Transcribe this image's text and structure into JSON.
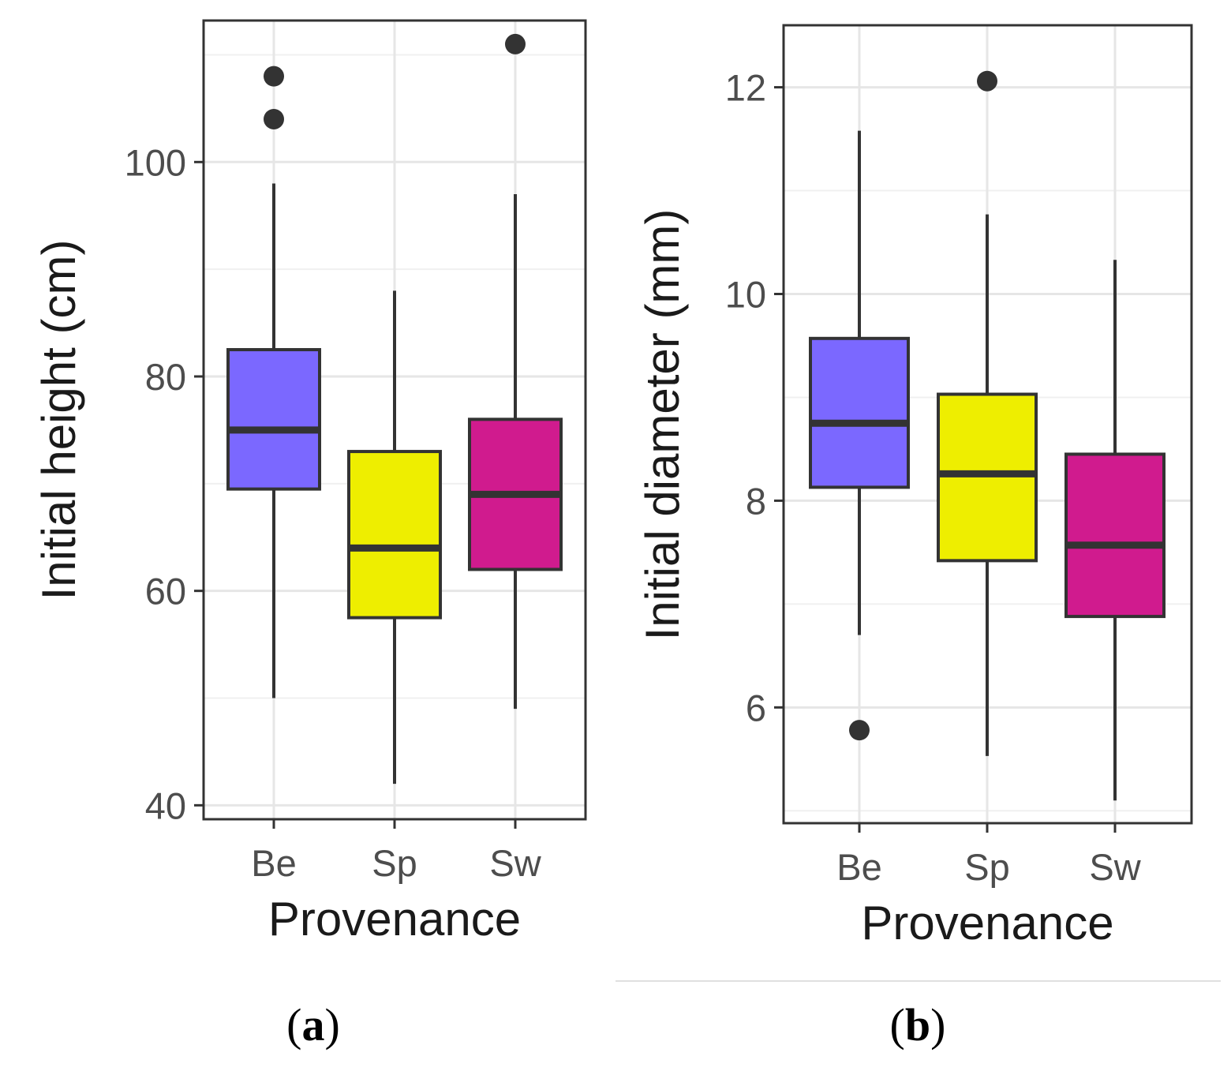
{
  "chart_data": [
    {
      "type": "boxplot",
      "panel_label": "a",
      "xlabel": "Provenance",
      "ylabel": "Initial height (cm)",
      "categories": [
        "Be",
        "Sp",
        "Sw"
      ],
      "ylim": [
        38.7,
        113.2
      ],
      "yticks": [
        40,
        60,
        80,
        100
      ],
      "ytick_labels": [
        "40",
        "60",
        "80",
        "100"
      ],
      "grid": true,
      "boxes": [
        {
          "category": "Be",
          "whisker_low": 50,
          "q1": 69.5,
          "median": 75,
          "q3": 82.5,
          "whisker_high": 98,
          "outliers": [
            104,
            108
          ],
          "fill": "#7b68ff"
        },
        {
          "category": "Sp",
          "whisker_low": 42,
          "q1": 57.5,
          "median": 64,
          "q3": 73,
          "whisker_high": 88,
          "outliers": [],
          "fill": "#eeee00"
        },
        {
          "category": "Sw",
          "whisker_low": 49,
          "q1": 62,
          "median": 69,
          "q3": 76,
          "whisker_high": 97,
          "outliers": [
            111
          ],
          "fill": "#d01b8e"
        }
      ]
    },
    {
      "type": "boxplot",
      "panel_label": "b",
      "xlabel": "Provenance",
      "ylabel": "Initial diameter (mm)",
      "categories": [
        "Be",
        "Sp",
        "Sw"
      ],
      "ylim": [
        4.88,
        12.6
      ],
      "yticks": [
        6,
        8,
        10,
        12
      ],
      "ytick_labels": [
        "6",
        "8",
        "10",
        "12"
      ],
      "grid": true,
      "boxes": [
        {
          "category": "Be",
          "whisker_low": 6.7,
          "q1": 8.13,
          "median": 8.75,
          "q3": 9.57,
          "whisker_high": 11.58,
          "outliers": [
            5.78
          ],
          "fill": "#7b68ff"
        },
        {
          "category": "Sp",
          "whisker_low": 5.53,
          "q1": 7.42,
          "median": 8.26,
          "q3": 9.03,
          "whisker_high": 10.77,
          "outliers": [
            12.06
          ],
          "fill": "#eeee00"
        },
        {
          "category": "Sw",
          "whisker_low": 5.1,
          "q1": 6.88,
          "median": 7.57,
          "q3": 8.45,
          "whisker_high": 10.33,
          "outliers": [],
          "fill": "#d01b8e"
        }
      ]
    }
  ],
  "colors": {
    "panel_border": "#333333",
    "grid_major": "#e6e6e6",
    "grid_minor": "#f0f0f0",
    "box_stroke": "#333333",
    "tick_text": "#4d4d4d",
    "title_text": "#1a1a1a",
    "separator": "#e0e0e0"
  }
}
